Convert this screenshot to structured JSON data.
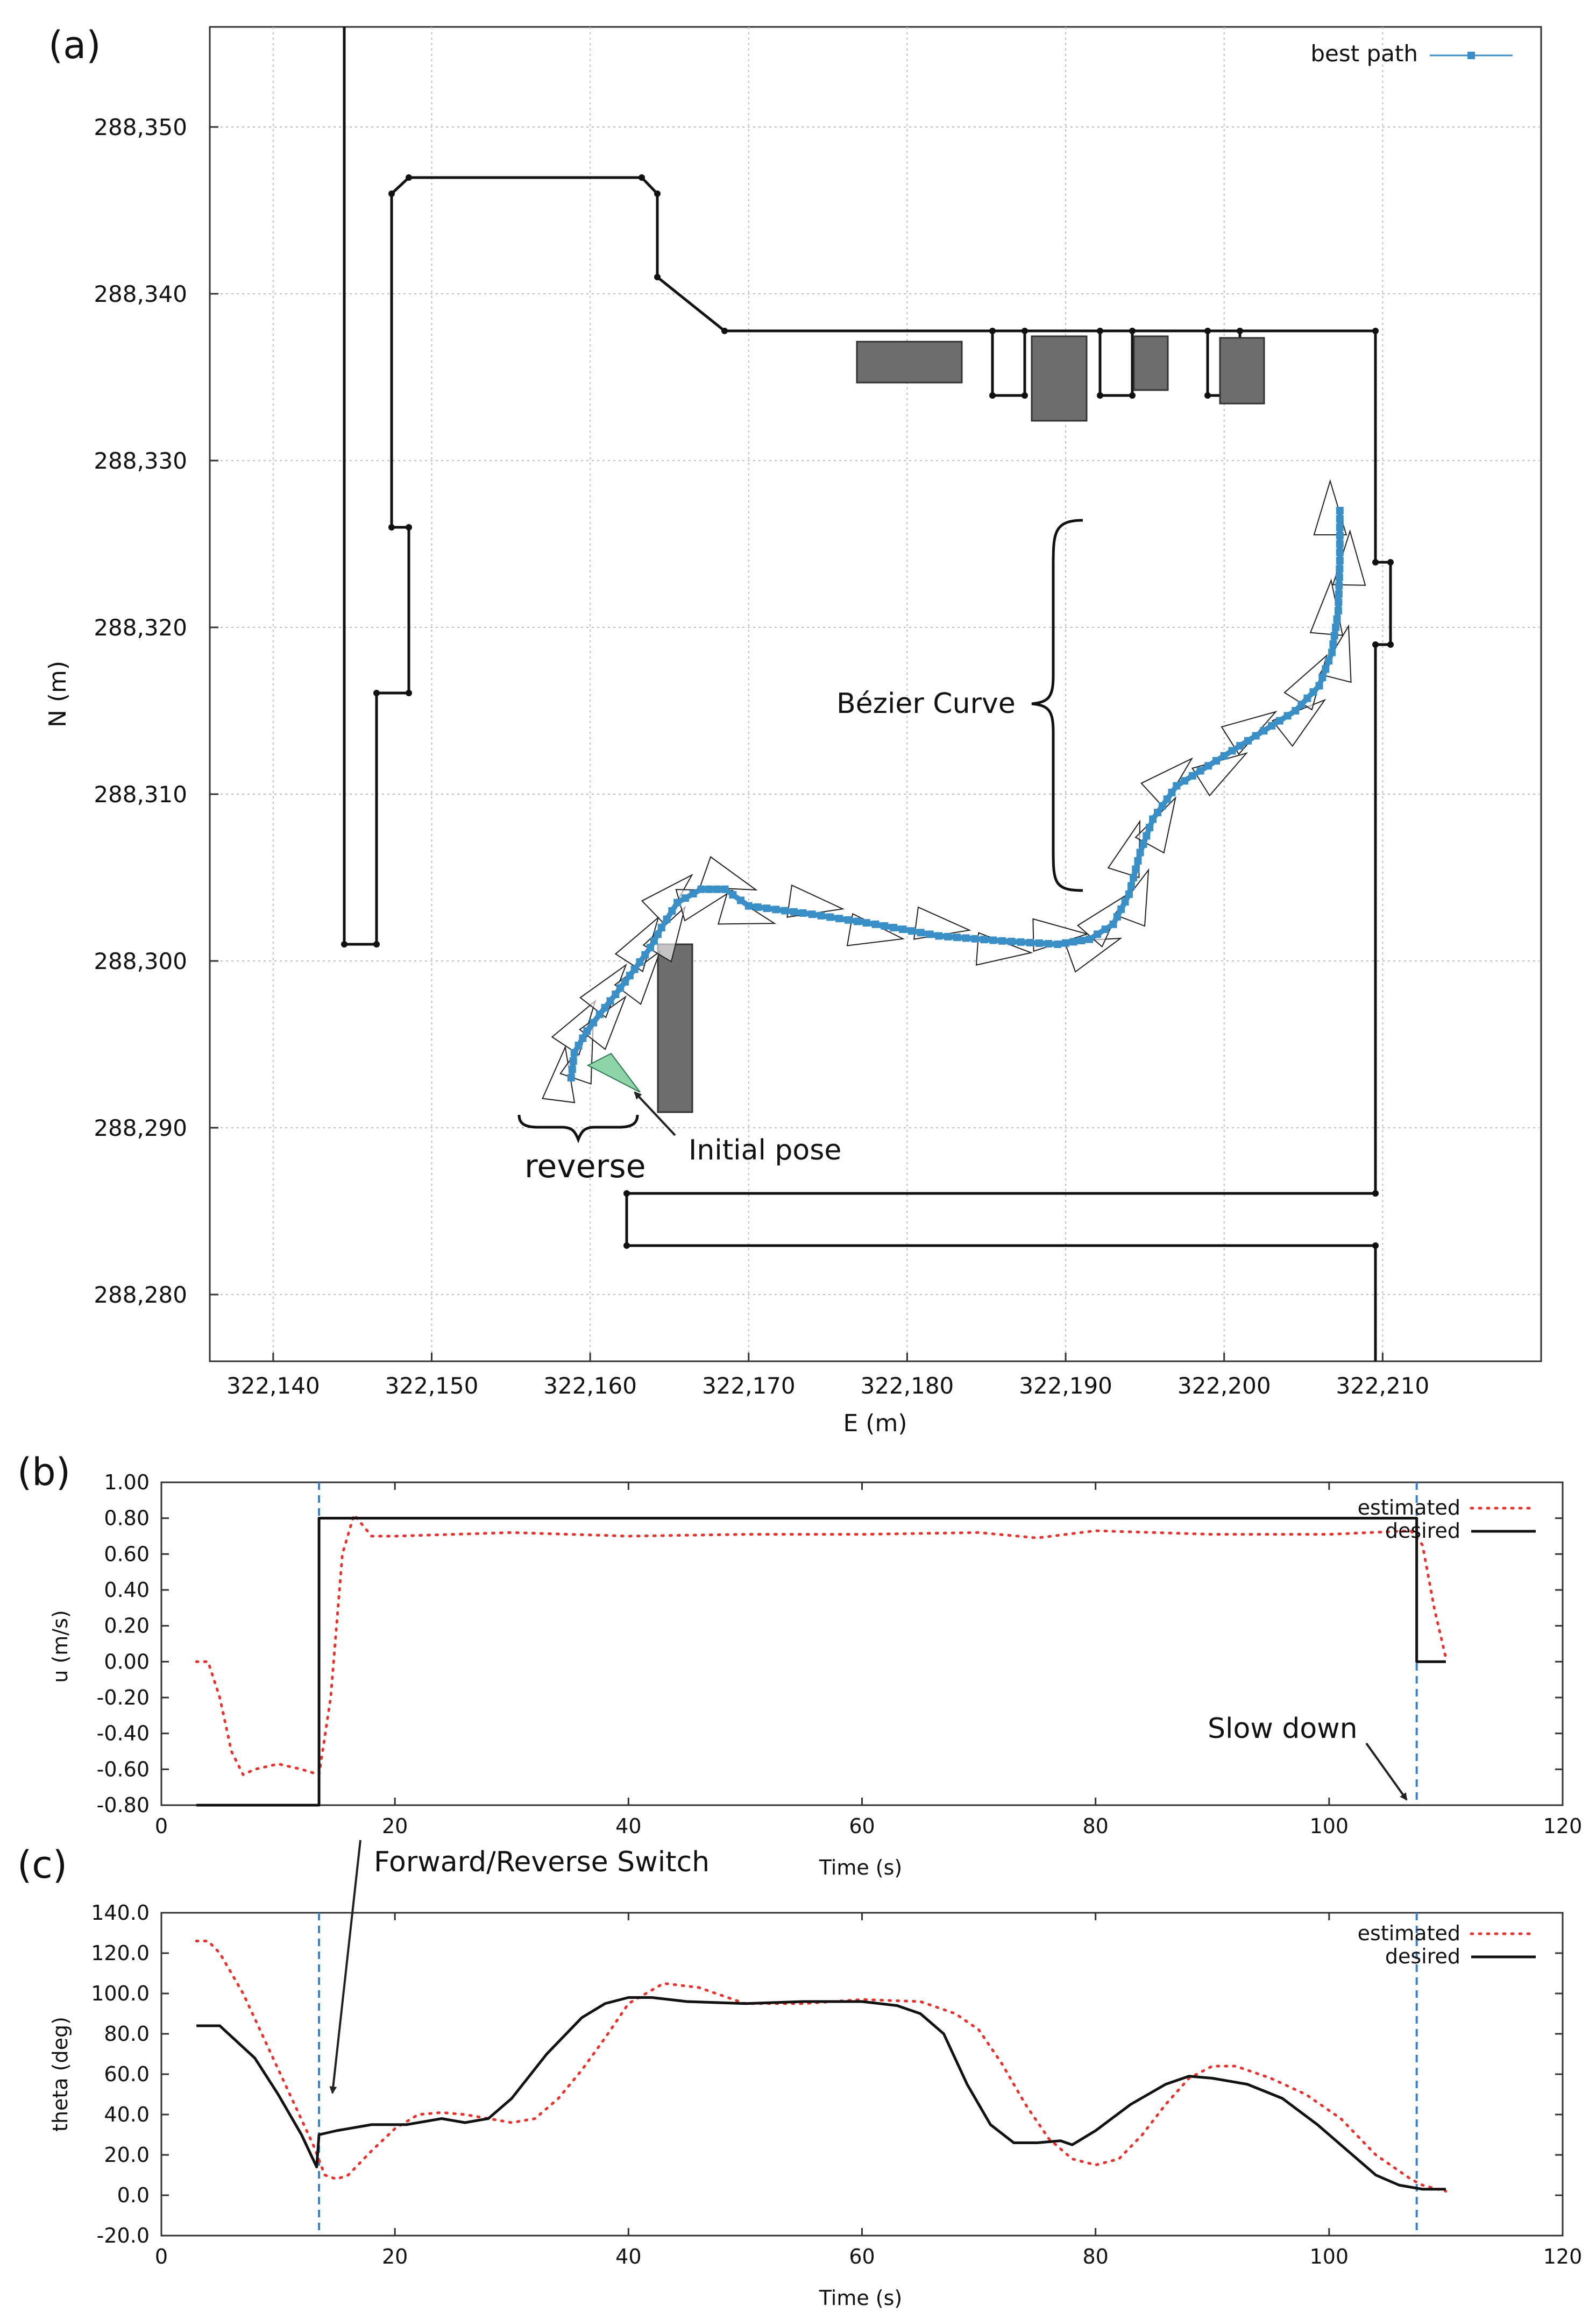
{
  "panel_labels": [
    "(a)",
    "(b)",
    "(c)"
  ],
  "chart_data": [
    {
      "type": "line",
      "panel": "(a)",
      "xlabel": "E (m)",
      "ylabel": "N (m)",
      "xlim": [
        322136,
        322220
      ],
      "ylim": [
        288276,
        288356
      ],
      "xticks": [
        322140,
        322150,
        322160,
        322170,
        322180,
        322190,
        322200,
        322210
      ],
      "xtick_labels": [
        "322,140",
        "322,150",
        "322,160",
        "322,170",
        "322,180",
        "322,190",
        "322,200",
        "322,210"
      ],
      "yticks": [
        288280,
        288290,
        288300,
        288310,
        288320,
        288330,
        288340,
        288350
      ],
      "ytick_labels": [
        "288,280",
        "288,290",
        "288,300",
        "288,310",
        "288,320",
        "288,330",
        "288,340",
        "288,350"
      ],
      "grid": true,
      "legend": "top-right",
      "series": [
        {
          "name": "best path",
          "color": "#3b8fc7",
          "marker": "square",
          "x": [
            322158.8,
            322159,
            322159.8,
            322160.6,
            322161.6,
            322162.8,
            322163.8,
            322164.5,
            322165.5,
            322167,
            322168.5,
            322170,
            322174,
            322178,
            322182,
            322186,
            322189.5,
            322191.5,
            322193,
            322194,
            322194.7,
            322195.5,
            322197,
            322199.5,
            322202,
            322204.5,
            322206,
            322206.8,
            322207.2,
            322207.3,
            322207.3
          ],
          "y": [
            288293,
            288294.5,
            288295.8,
            288296.8,
            288298,
            288299.5,
            288300.8,
            288302,
            288303.5,
            288304.3,
            288304.3,
            288303.3,
            288302.8,
            288302.2,
            288301.5,
            288301.2,
            288301,
            288301.3,
            288302.2,
            288304,
            288306.5,
            288308.5,
            288310.5,
            288312,
            288313.5,
            288315,
            288316.5,
            288318.5,
            288321,
            288324,
            288327
          ]
        }
      ],
      "obstacles_color": "#6d6d6d",
      "start_color": "#8fd4a8"
    },
    {
      "type": "line",
      "panel": "(b)",
      "xlabel": "Time (s)",
      "ylabel": "u (m/s)",
      "xlim": [
        0,
        120
      ],
      "ylim": [
        -0.8,
        1.0
      ],
      "xticks": [
        0,
        20,
        40,
        60,
        80,
        100,
        120
      ],
      "xtick_labels": [
        "0",
        "20",
        "40",
        "60",
        "80",
        "100",
        "120"
      ],
      "yticks": [
        -0.8,
        -0.6,
        -0.4,
        -0.2,
        0.0,
        0.2,
        0.4,
        0.6,
        0.8,
        1.0
      ],
      "ytick_labels": [
        "-0.80",
        "-0.60",
        "-0.40",
        "-0.20",
        "0.00",
        "0.20",
        "0.40",
        "0.60",
        "0.80",
        "1.00"
      ],
      "grid": false,
      "legend": "top-right",
      "vlines": [
        13.5,
        107.5
      ],
      "series": [
        {
          "name": "estimated",
          "color": "#e8322c",
          "style": "dotted",
          "x": [
            3,
            4,
            5,
            6,
            7,
            8,
            10,
            12,
            13.5,
            14.5,
            15.5,
            16.5,
            18,
            20,
            25,
            30,
            40,
            50,
            60,
            70,
            75,
            80,
            90,
            100,
            107,
            108,
            109,
            110
          ],
          "y": [
            0,
            0,
            -0.2,
            -0.5,
            -0.63,
            -0.6,
            -0.57,
            -0.6,
            -0.63,
            -0.2,
            0.6,
            0.82,
            0.7,
            0.7,
            0.71,
            0.72,
            0.7,
            0.71,
            0.71,
            0.72,
            0.69,
            0.73,
            0.71,
            0.71,
            0.73,
            0.65,
            0.3,
            0.02
          ]
        },
        {
          "name": "desired",
          "color": "#111111",
          "style": "solid",
          "x": [
            3,
            13.5,
            13.5,
            107.5,
            107.5,
            110
          ],
          "y": [
            -0.8,
            -0.8,
            0.8,
            0.8,
            0.0,
            0.0
          ]
        }
      ]
    },
    {
      "type": "line",
      "panel": "(c)",
      "xlabel": "Time (s)",
      "ylabel": "theta (deg)",
      "xlim": [
        0,
        120
      ],
      "ylim": [
        -20,
        140
      ],
      "xticks": [
        0,
        20,
        40,
        60,
        80,
        100,
        120
      ],
      "xtick_labels": [
        "0",
        "20",
        "40",
        "60",
        "80",
        "100",
        "120"
      ],
      "yticks": [
        -20,
        0,
        20,
        40,
        60,
        80,
        100,
        120,
        140
      ],
      "ytick_labels": [
        "-20.0",
        "0.0",
        "20.0",
        "40.0",
        "60.0",
        "80.0",
        "100.0",
        "120.0",
        "140.0"
      ],
      "grid": false,
      "legend": "top-right",
      "vlines": [
        13.5,
        107.5
      ],
      "series": [
        {
          "name": "estimated",
          "color": "#e8322c",
          "style": "dotted",
          "x": [
            3,
            4,
            5,
            7,
            9,
            11,
            13,
            14,
            15,
            16,
            18,
            20,
            22,
            24,
            26,
            28,
            30,
            32,
            34,
            36,
            38,
            40,
            43,
            46,
            50,
            55,
            60,
            65,
            68,
            70,
            72,
            74,
            76,
            78,
            80,
            82,
            84,
            86,
            88,
            90,
            92,
            95,
            98,
            101,
            104,
            107,
            108,
            110
          ],
          "y": [
            126,
            126,
            120,
            100,
            75,
            50,
            25,
            10,
            8,
            10,
            22,
            33,
            40,
            41,
            40,
            38,
            36,
            38,
            48,
            62,
            78,
            95,
            105,
            103,
            95,
            95,
            97,
            96,
            90,
            82,
            65,
            45,
            28,
            18,
            15,
            18,
            30,
            45,
            58,
            64,
            64,
            58,
            50,
            38,
            20,
            8,
            5,
            2
          ]
        },
        {
          "name": "desired",
          "color": "#111111",
          "style": "solid",
          "x": [
            3,
            5,
            8,
            10,
            12,
            13.3,
            13.5,
            15,
            18,
            21,
            24,
            26,
            28,
            30,
            33,
            36,
            38,
            40,
            42,
            45,
            50,
            55,
            60,
            63,
            65,
            67,
            69,
            71,
            73,
            75,
            77,
            78,
            80,
            83,
            86,
            88,
            90,
            93,
            96,
            99,
            102,
            104,
            106,
            108,
            110
          ],
          "y": [
            84,
            84,
            68,
            50,
            30,
            14,
            30,
            32,
            35,
            35,
            38,
            36,
            38,
            48,
            70,
            88,
            95,
            98,
            98,
            96,
            95,
            96,
            96,
            94,
            90,
            80,
            55,
            35,
            26,
            26,
            27,
            25,
            32,
            45,
            55,
            59,
            58,
            55,
            48,
            35,
            20,
            10,
            5,
            3,
            3
          ]
        }
      ]
    }
  ],
  "annotations": {
    "bezier": "Bézier Curve",
    "reverse": "reverse",
    "initial_pose": "Initial pose",
    "slow_down": "Slow down",
    "switch": "Forward/Reverse Switch"
  }
}
